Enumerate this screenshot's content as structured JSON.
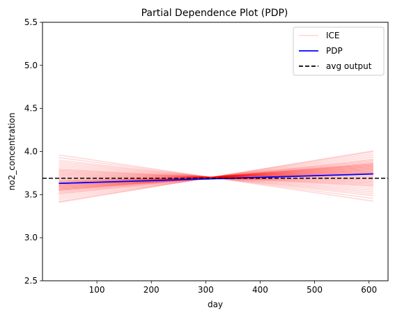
{
  "chart_data": {
    "type": "line",
    "title": "Partial Dependence Plot (PDP)",
    "xlabel": "day",
    "ylabel": "no2_concentration",
    "xlim": [
      0,
      635
    ],
    "ylim": [
      2.5,
      5.5
    ],
    "x_ticks": [
      100,
      200,
      300,
      400,
      500,
      600
    ],
    "x_tick_labels": [
      "100",
      "200",
      "300",
      "400",
      "500",
      "600"
    ],
    "y_ticks": [
      2.5,
      3.0,
      3.5,
      4.0,
      4.5,
      5.0,
      5.5
    ],
    "y_tick_labels": [
      "2.5",
      "3.0",
      "3.5",
      "4.0",
      "4.5",
      "5.0",
      "5.5"
    ],
    "grid": false,
    "legend_position": "top-right",
    "legend": [
      {
        "label": "ICE",
        "color": "#ff0000",
        "style": "solid",
        "alpha": 0.15
      },
      {
        "label": "PDP",
        "color": "#0000ff",
        "style": "solid"
      },
      {
        "label": "avg output",
        "color": "#000000",
        "style": "dashed"
      }
    ],
    "ice": {
      "color": "#ff0000",
      "alpha": 0.15,
      "pivot_x": 310,
      "pivot_y": 3.7,
      "x_start": 30,
      "x_end": 608,
      "start_values": [
        3.96,
        3.93,
        3.9,
        3.88,
        3.86,
        3.84,
        3.82,
        3.8,
        3.79,
        3.78,
        3.77,
        3.76,
        3.75,
        3.74,
        3.73,
        3.72,
        3.71,
        3.7,
        3.69,
        3.68,
        3.67,
        3.66,
        3.65,
        3.64,
        3.63,
        3.62,
        3.61,
        3.6,
        3.59,
        3.58,
        3.57,
        3.56,
        3.55,
        3.54,
        3.53,
        3.52,
        3.51,
        3.5,
        3.48,
        3.46,
        3.44,
        3.42,
        3.41,
        3.62,
        3.6,
        3.58,
        3.56,
        3.64,
        3.66,
        3.55,
        3.57,
        3.59,
        3.61,
        3.63,
        3.65
      ]
    },
    "series": [
      {
        "name": "PDP",
        "color": "#0000ff",
        "x": [
          30,
          608
        ],
        "y": [
          3.63,
          3.74
        ]
      },
      {
        "name": "avg output",
        "color": "#000000",
        "dashed": true,
        "y_constant": 3.69
      }
    ]
  }
}
